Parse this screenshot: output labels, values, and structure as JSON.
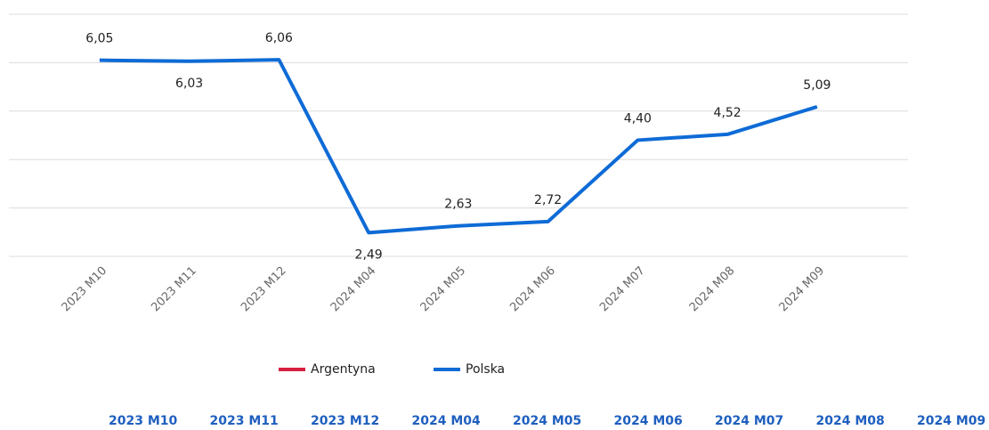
{
  "chart_data": {
    "type": "line",
    "categories": [
      "2023 M10",
      "2023 M11",
      "2023 M12",
      "2024 M04",
      "2024 M05",
      "2024 M06",
      "2024 M07",
      "2024 M08",
      "2024 M09"
    ],
    "series": [
      {
        "name": "Argentyna",
        "color": "#d6203f",
        "values": [
          null,
          null,
          null,
          null,
          null,
          null,
          null,
          null,
          null
        ]
      },
      {
        "name": "Polska",
        "color": "#0e6bd6",
        "values": [
          6.05,
          6.03,
          6.06,
          2.49,
          2.63,
          2.72,
          4.4,
          4.52,
          5.09
        ],
        "value_labels": [
          "6,05",
          "6,03",
          "6,06",
          "2,49",
          "2,63",
          "2,72",
          "4,40",
          "4,52",
          "5,09"
        ]
      }
    ],
    "ylim": [
      2,
      7
    ],
    "yticks": [
      2,
      3,
      4,
      5,
      6,
      7
    ],
    "grid": true
  }
}
